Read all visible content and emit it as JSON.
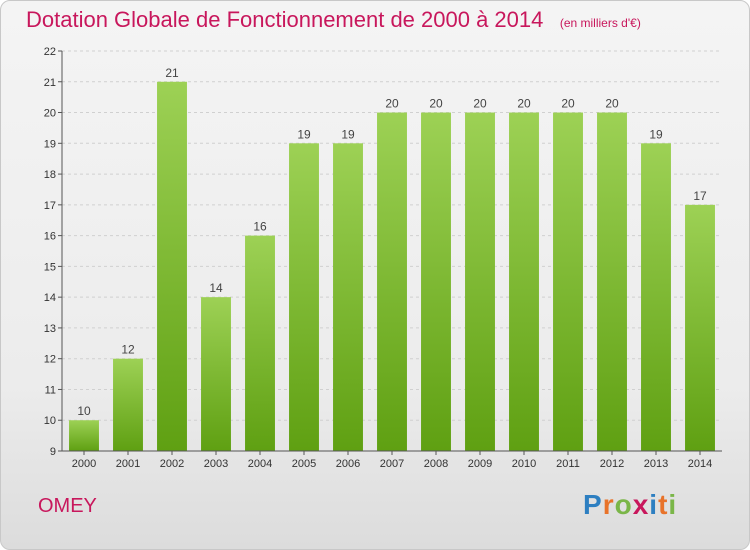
{
  "header": {
    "title": "Dotation Globale de Fonctionnement de 2000 à 2014",
    "unit": "(en milliers d'€)"
  },
  "footer": {
    "commune": "OMEY",
    "logo_letters": [
      "P",
      "r",
      "o",
      "x",
      "i",
      "t",
      "i"
    ],
    "logo_colors": [
      "#2d7fc1",
      "#e8732a",
      "#7ab648",
      "#c8175c",
      "#2d7fc1",
      "#e8732a",
      "#7ab648"
    ]
  },
  "colors": {
    "bar_top": "#9dd155",
    "bar_bottom": "#5fa012",
    "grid": "#d0d0d0",
    "axis": "#555555",
    "accent": "#c8175c"
  },
  "chart_data": {
    "type": "bar",
    "categories": [
      "2000",
      "2001",
      "2002",
      "2003",
      "2004",
      "2005",
      "2006",
      "2007",
      "2008",
      "2009",
      "2010",
      "2011",
      "2012",
      "2013",
      "2014"
    ],
    "values": [
      10,
      12,
      21,
      14,
      16,
      19,
      19,
      20,
      20,
      20,
      20,
      20,
      20,
      19,
      17
    ],
    "title": "Dotation Globale de Fonctionnement de 2000 à 2014",
    "ylim": [
      9,
      22
    ],
    "yticks": [
      9,
      10,
      11,
      12,
      13,
      14,
      15,
      16,
      17,
      18,
      19,
      20,
      21,
      22
    ],
    "grid": true,
    "data_labels": true
  }
}
